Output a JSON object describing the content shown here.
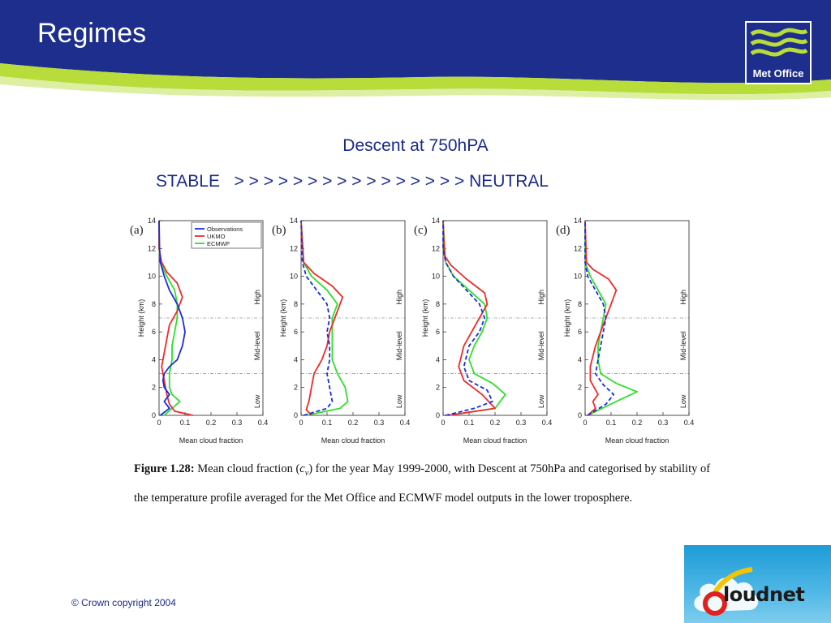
{
  "slide": {
    "title": "Regimes",
    "subtitle": "Descent at 750hPA",
    "stability": {
      "left": "STABLE",
      "arrows": "> > > > > > > > > > > > > > > >",
      "right": "NEUTRAL"
    }
  },
  "logo": {
    "text": "Met Office"
  },
  "caption": {
    "figure_label": "Figure 1.28:",
    "text_before": "Mean cloud fraction (",
    "symbol": "c",
    "symbol_sub": "v",
    "text_after": ") for the year May 1999-2000, with Descent at 750hPa and categorised by stability of the temperature profile averaged for the Met Office  and ECMWF  model outputs in the lower troposphere."
  },
  "footer": {
    "copyright": "© Crown copyright 2004",
    "cloudnet_logo": "Cloudnet"
  },
  "colors": {
    "header_blue": "#1d2e8c",
    "header_green": "#b8dc3a",
    "text_blue": "#1a2a8a",
    "observations": "#1a2ee0",
    "ukmo": "#f02a2a",
    "ecmwf": "#2ee02a"
  },
  "chart_data": [
    {
      "type": "line",
      "panel_label": "(a)",
      "xlabel": "Mean cloud fraction",
      "ylabel": "Height (km)",
      "xlim": [
        0,
        0.4
      ],
      "ylim": [
        0,
        14
      ],
      "xticks": [
        "0",
        "0.1",
        "0.2",
        "0.3",
        "0.4"
      ],
      "yticks": [
        "0",
        "2",
        "4",
        "6",
        "8",
        "10",
        "12",
        "14"
      ],
      "levels": [
        {
          "name": "Low",
          "y": 1
        },
        {
          "name": "Mid-level",
          "y": 5
        },
        {
          "name": "High",
          "y": 8.5
        }
      ],
      "boundaries": [
        3,
        7
      ],
      "legend": [
        "Observations",
        "UKMO",
        "ECMWF"
      ],
      "series": [
        {
          "name": "Observations",
          "points": [
            [
              0.005,
              0
            ],
            [
              0.04,
              0.5
            ],
            [
              0.02,
              1
            ],
            [
              0.04,
              1.5
            ],
            [
              0.02,
              2
            ],
            [
              0.015,
              2.5
            ],
            [
              0.02,
              3
            ],
            [
              0.04,
              3.5
            ],
            [
              0.07,
              4
            ],
            [
              0.09,
              5
            ],
            [
              0.1,
              6
            ],
            [
              0.09,
              7
            ],
            [
              0.07,
              8
            ],
            [
              0.04,
              9
            ],
            [
              0.02,
              10
            ],
            [
              0.005,
              11
            ],
            [
              0.002,
              12
            ],
            [
              0,
              14
            ]
          ]
        },
        {
          "name": "UKMO",
          "points": [
            [
              0.13,
              0
            ],
            [
              0.06,
              0.3
            ],
            [
              0.04,
              0.8
            ],
            [
              0.03,
              1.5
            ],
            [
              0.02,
              2.5
            ],
            [
              0.01,
              3.5
            ],
            [
              0.02,
              4.5
            ],
            [
              0.03,
              5.5
            ],
            [
              0.04,
              6.5
            ],
            [
              0.07,
              7.5
            ],
            [
              0.09,
              8.5
            ],
            [
              0.07,
              9.5
            ],
            [
              0.03,
              10.3
            ],
            [
              0.01,
              11
            ],
            [
              0,
              12
            ],
            [
              0,
              14
            ]
          ]
        },
        {
          "name": "ECMWF",
          "points": [
            [
              0.02,
              0
            ],
            [
              0.05,
              0.5
            ],
            [
              0.08,
              1
            ],
            [
              0.05,
              1.5
            ],
            [
              0.04,
              2
            ],
            [
              0.04,
              3
            ],
            [
              0.05,
              4
            ],
            [
              0.05,
              5
            ],
            [
              0.06,
              6
            ],
            [
              0.07,
              7
            ],
            [
              0.07,
              8
            ],
            [
              0.06,
              9
            ],
            [
              0.03,
              10
            ],
            [
              0.005,
              11
            ],
            [
              0,
              12
            ],
            [
              0,
              14
            ]
          ]
        }
      ]
    },
    {
      "type": "line",
      "panel_label": "(b)",
      "xlabel": "Mean cloud fraction",
      "ylabel": "Height (km)",
      "xlim": [
        0,
        0.4
      ],
      "ylim": [
        0,
        14
      ],
      "xticks": [
        "0",
        "0.1",
        "0.2",
        "0.3",
        "0.4"
      ],
      "yticks": [
        "0",
        "2",
        "4",
        "6",
        "8",
        "10",
        "12",
        "14"
      ],
      "levels": [
        {
          "name": "Low",
          "y": 1
        },
        {
          "name": "Mid-level",
          "y": 5
        },
        {
          "name": "High",
          "y": 8.5
        }
      ],
      "boundaries": [
        3,
        7
      ],
      "series": [
        {
          "name": "Observations",
          "points": [
            [
              0.01,
              0
            ],
            [
              0.1,
              0.5
            ],
            [
              0.12,
              1
            ],
            [
              0.11,
              2
            ],
            [
              0.1,
              3
            ],
            [
              0.11,
              4
            ],
            [
              0.11,
              5
            ],
            [
              0.1,
              6
            ],
            [
              0.11,
              7
            ],
            [
              0.1,
              8
            ],
            [
              0.06,
              9
            ],
            [
              0.02,
              10
            ],
            [
              0.005,
              11
            ],
            [
              0,
              14
            ]
          ]
        },
        {
          "name": "UKMO",
          "points": [
            [
              0.04,
              0
            ],
            [
              0.02,
              0.4
            ],
            [
              0.03,
              1
            ],
            [
              0.04,
              2
            ],
            [
              0.05,
              3
            ],
            [
              0.08,
              4
            ],
            [
              0.1,
              5
            ],
            [
              0.11,
              6
            ],
            [
              0.13,
              7
            ],
            [
              0.16,
              8.5
            ],
            [
              0.12,
              9.3
            ],
            [
              0.05,
              10.2
            ],
            [
              0.01,
              11
            ],
            [
              0,
              14
            ]
          ]
        },
        {
          "name": "ECMWF",
          "points": [
            [
              0.02,
              0
            ],
            [
              0.15,
              0.5
            ],
            [
              0.18,
              1
            ],
            [
              0.17,
              2
            ],
            [
              0.14,
              3
            ],
            [
              0.12,
              4
            ],
            [
              0.12,
              5
            ],
            [
              0.12,
              6
            ],
            [
              0.12,
              7
            ],
            [
              0.14,
              8
            ],
            [
              0.1,
              9
            ],
            [
              0.04,
              10
            ],
            [
              0.01,
              11
            ],
            [
              0,
              14
            ]
          ]
        }
      ]
    },
    {
      "type": "line",
      "panel_label": "(c)",
      "xlabel": "Mean cloud fraction",
      "ylabel": "Height (km)",
      "xlim": [
        0,
        0.4
      ],
      "ylim": [
        0,
        14
      ],
      "xticks": [
        "0",
        "0.1",
        "0.2",
        "0.3",
        "0.4"
      ],
      "yticks": [
        "0",
        "2",
        "4",
        "6",
        "8",
        "10",
        "12",
        "14"
      ],
      "levels": [
        {
          "name": "Low",
          "y": 1
        },
        {
          "name": "Mid-level",
          "y": 5
        },
        {
          "name": "High",
          "y": 8.5
        }
      ],
      "boundaries": [
        3,
        7
      ],
      "series": [
        {
          "name": "Observations",
          "points": [
            [
              0.01,
              0
            ],
            [
              0.12,
              0.5
            ],
            [
              0.19,
              1
            ],
            [
              0.17,
              1.8
            ],
            [
              0.1,
              2.5
            ],
            [
              0.08,
              3.5
            ],
            [
              0.1,
              5
            ],
            [
              0.14,
              6
            ],
            [
              0.16,
              7
            ],
            [
              0.14,
              8
            ],
            [
              0.09,
              9
            ],
            [
              0.04,
              10
            ],
            [
              0.01,
              11
            ],
            [
              0,
              12
            ],
            [
              0,
              14
            ]
          ]
        },
        {
          "name": "UKMO",
          "points": [
            [
              0.02,
              0
            ],
            [
              0.2,
              0.5
            ],
            [
              0.15,
              1.5
            ],
            [
              0.08,
              2.5
            ],
            [
              0.06,
              3.5
            ],
            [
              0.08,
              5
            ],
            [
              0.11,
              6
            ],
            [
              0.14,
              7
            ],
            [
              0.17,
              8
            ],
            [
              0.16,
              8.8
            ],
            [
              0.09,
              9.8
            ],
            [
              0.03,
              10.8
            ],
            [
              0.005,
              11.5
            ],
            [
              0,
              14
            ]
          ]
        },
        {
          "name": "ECMWF",
          "points": [
            [
              0.02,
              0
            ],
            [
              0.2,
              0.5
            ],
            [
              0.24,
              1.5
            ],
            [
              0.19,
              2.3
            ],
            [
              0.12,
              3
            ],
            [
              0.1,
              4
            ],
            [
              0.12,
              5
            ],
            [
              0.15,
              6
            ],
            [
              0.17,
              7
            ],
            [
              0.16,
              8
            ],
            [
              0.1,
              9
            ],
            [
              0.04,
              10
            ],
            [
              0.01,
              11
            ],
            [
              0,
              14
            ]
          ]
        }
      ]
    },
    {
      "type": "line",
      "panel_label": "(d)",
      "xlabel": "Mean cloud fraction",
      "ylabel": "Height (km)",
      "xlim": [
        0,
        0.4
      ],
      "ylim": [
        0,
        14
      ],
      "xticks": [
        "0",
        "0.1",
        "0.2",
        "0.3",
        "0.4"
      ],
      "yticks": [
        "0",
        "2",
        "4",
        "6",
        "8",
        "10",
        "12",
        "14"
      ],
      "levels": [
        {
          "name": "Low",
          "y": 1
        },
        {
          "name": "Mid-level",
          "y": 5
        },
        {
          "name": "High",
          "y": 8.5
        }
      ],
      "boundaries": [
        3,
        7
      ],
      "series": [
        {
          "name": "Observations",
          "points": [
            [
              0.01,
              0
            ],
            [
              0.08,
              0.8
            ],
            [
              0.11,
              1.5
            ],
            [
              0.07,
              2.2
            ],
            [
              0.04,
              3
            ],
            [
              0.05,
              4
            ],
            [
              0.06,
              5
            ],
            [
              0.07,
              6
            ],
            [
              0.08,
              7
            ],
            [
              0.07,
              8
            ],
            [
              0.04,
              9
            ],
            [
              0.01,
              10
            ],
            [
              0,
              11
            ],
            [
              0,
              14
            ]
          ]
        },
        {
          "name": "UKMO",
          "points": [
            [
              0.01,
              0
            ],
            [
              0.04,
              0.5
            ],
            [
              0.03,
              1
            ],
            [
              0.05,
              1.5
            ],
            [
              0.02,
              2.5
            ],
            [
              0.02,
              3.5
            ],
            [
              0.04,
              5
            ],
            [
              0.06,
              6
            ],
            [
              0.08,
              7
            ],
            [
              0.1,
              8
            ],
            [
              0.12,
              9
            ],
            [
              0.09,
              9.8
            ],
            [
              0.03,
              10.5
            ],
            [
              0.005,
              11
            ],
            [
              0,
              14
            ]
          ]
        },
        {
          "name": "ECMWF",
          "points": [
            [
              0.01,
              0
            ],
            [
              0.12,
              1
            ],
            [
              0.2,
              1.7
            ],
            [
              0.12,
              2.3
            ],
            [
              0.06,
              3
            ],
            [
              0.05,
              4
            ],
            [
              0.05,
              5
            ],
            [
              0.06,
              6
            ],
            [
              0.07,
              7
            ],
            [
              0.08,
              8
            ],
            [
              0.05,
              9
            ],
            [
              0.02,
              10
            ],
            [
              0,
              11
            ],
            [
              0,
              14
            ]
          ]
        }
      ]
    }
  ]
}
